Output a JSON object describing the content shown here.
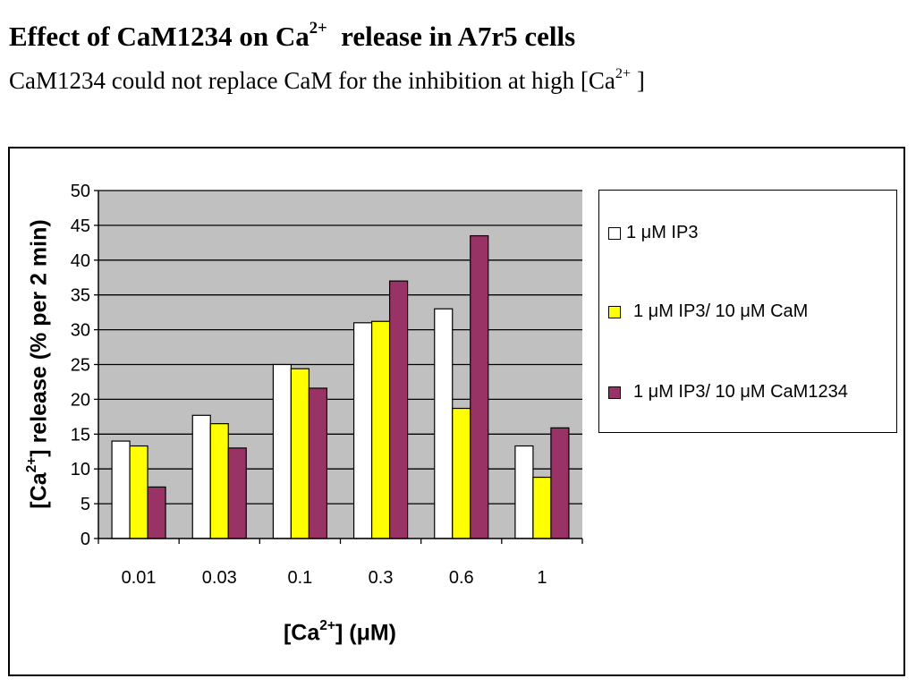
{
  "slide": {
    "title_pre": "Effect of CaM1234 on Ca",
    "title_sup": "2+",
    "title_post": "  release in A7r5 cells",
    "subtitle_pre": "CaM1234 could not replace CaM for the inhibition at high [Ca",
    "subtitle_sup": "2+",
    "subtitle_post": " ]"
  },
  "chart_data": {
    "type": "bar",
    "categories": [
      "0.01",
      "0.03",
      "0.1",
      "0.3",
      "0.6",
      "1"
    ],
    "series": [
      {
        "name": "1 μM IP3",
        "color": "#FFFFFF",
        "values": [
          14,
          17.7,
          25,
          31,
          33,
          13.3
        ]
      },
      {
        "name": "1 μM IP3/ 10 μM CaM",
        "color": "#FFFF00",
        "values": [
          13.3,
          16.5,
          24.4,
          31.2,
          18.7,
          8.8
        ]
      },
      {
        "name": "1 μM IP3/ 10 μM CaM1234",
        "color": "#993366",
        "values": [
          7.4,
          13,
          21.6,
          37,
          43.5,
          15.9
        ]
      }
    ],
    "ylim": [
      0,
      50
    ],
    "yticks": [
      0,
      5,
      10,
      15,
      20,
      25,
      30,
      35,
      40,
      45,
      50
    ],
    "plot_background": "#C0C0C0",
    "grid": true,
    "legend_position": "right",
    "xlabel": {
      "pre": "[Ca",
      "sup": "2+",
      "post": "] (μM)"
    },
    "ylabel": {
      "pre": "[Ca",
      "sup": "2+",
      "post": "] release (% per 2 min)"
    }
  }
}
